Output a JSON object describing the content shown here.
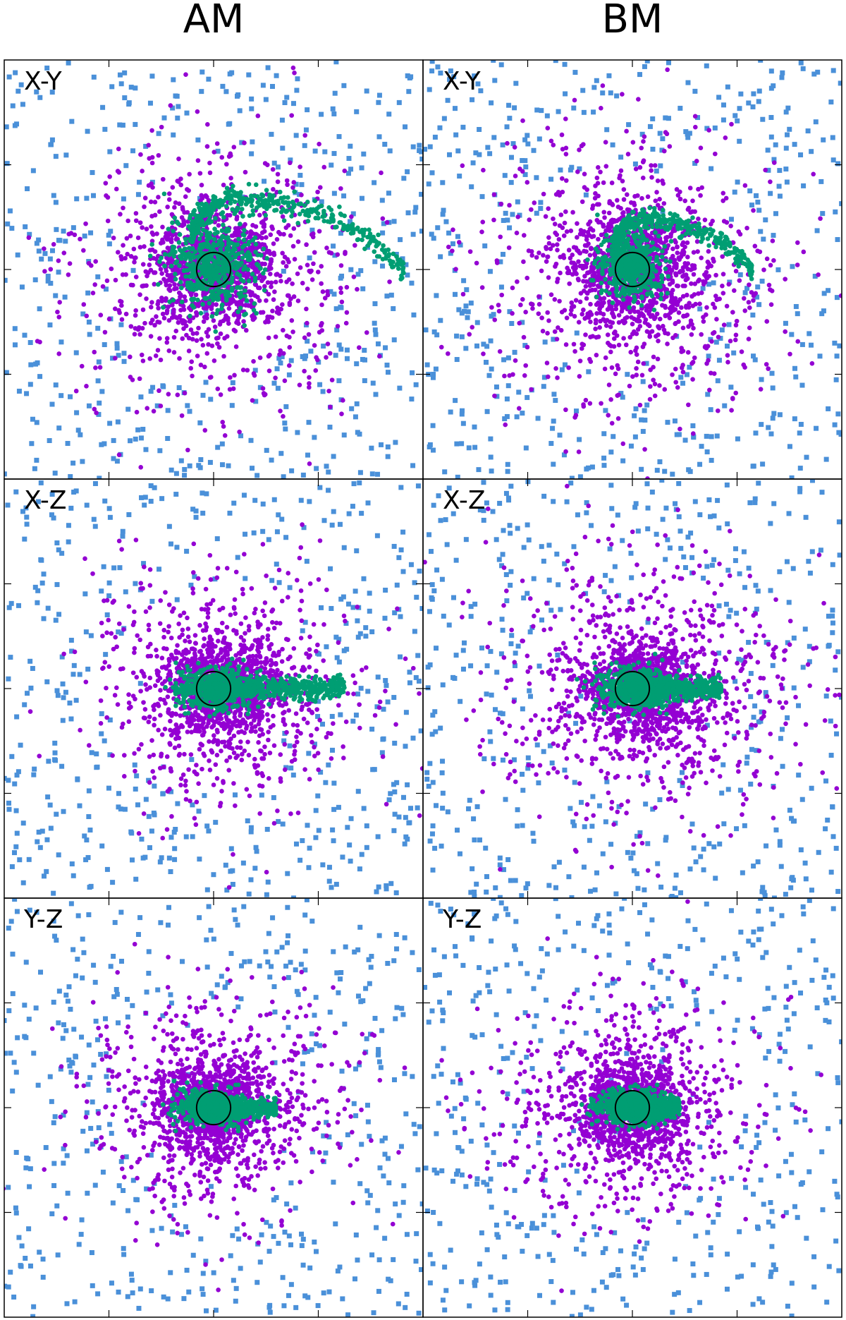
{
  "figure": {
    "column_titles": [
      "AM",
      "BM"
    ]
  },
  "colors": {
    "dark_matter": "#4a90d9",
    "dark_matter_core": "#6ab0f0",
    "stars": "#9400d3",
    "gas": "#009e73",
    "circle": "#000000"
  },
  "chart_data": [
    {
      "type": "scatter",
      "panel_label": "X-Y",
      "model": "AM",
      "xlim": [
        -2,
        2
      ],
      "ylim": [
        -2,
        2
      ],
      "xticks": [
        -1,
        0,
        1
      ],
      "yticks": [
        -1,
        0,
        1
      ],
      "gas_shape": "spiral-arm",
      "gas_extent": 1.2,
      "star_extent": 1.2,
      "circle_radius": 0.13
    },
    {
      "type": "scatter",
      "panel_label": "X-Y",
      "model": "BM",
      "xlim": [
        -2,
        2
      ],
      "ylim": [
        -2,
        2
      ],
      "xticks": [
        -1,
        0,
        1
      ],
      "yticks": [
        -1,
        0,
        1
      ],
      "gas_shape": "spiral-arm",
      "gas_extent": 0.85,
      "star_extent": 1.3,
      "circle_radius": 0.13
    },
    {
      "type": "scatter",
      "panel_label": "X-Z",
      "model": "AM",
      "xlim": [
        -2,
        2
      ],
      "ylim": [
        -2,
        2
      ],
      "xticks": [
        -1,
        0,
        1
      ],
      "yticks": [
        -1,
        0,
        1
      ],
      "gas_shape": "disk-tail",
      "gas_extent": 1.25,
      "star_extent": 1.2,
      "circle_radius": 0.13
    },
    {
      "type": "scatter",
      "panel_label": "X-Z",
      "model": "BM",
      "xlim": [
        -2,
        2
      ],
      "ylim": [
        -2,
        2
      ],
      "xticks": [
        -1,
        0,
        1
      ],
      "yticks": [
        -1,
        0,
        1
      ],
      "gas_shape": "disk-tail",
      "gas_extent": 0.85,
      "star_extent": 1.3,
      "circle_radius": 0.13
    },
    {
      "type": "scatter",
      "panel_label": "Y-Z",
      "model": "AM",
      "xlim": [
        -2,
        2
      ],
      "ylim": [
        -2,
        2
      ],
      "xticks": [
        -1,
        0,
        1
      ],
      "yticks": [
        -1,
        0,
        1
      ],
      "gas_shape": "disk-short",
      "gas_extent": 0.6,
      "star_extent": 1.1,
      "circle_radius": 0.13
    },
    {
      "type": "scatter",
      "panel_label": "Y-Z",
      "model": "BM",
      "xlim": [
        -2,
        2
      ],
      "ylim": [
        -2,
        2
      ],
      "xticks": [
        -1,
        0,
        1
      ],
      "yticks": [
        -1,
        0,
        1
      ],
      "gas_shape": "disk-short",
      "gas_extent": 0.45,
      "star_extent": 1.1,
      "circle_radius": 0.13
    }
  ]
}
